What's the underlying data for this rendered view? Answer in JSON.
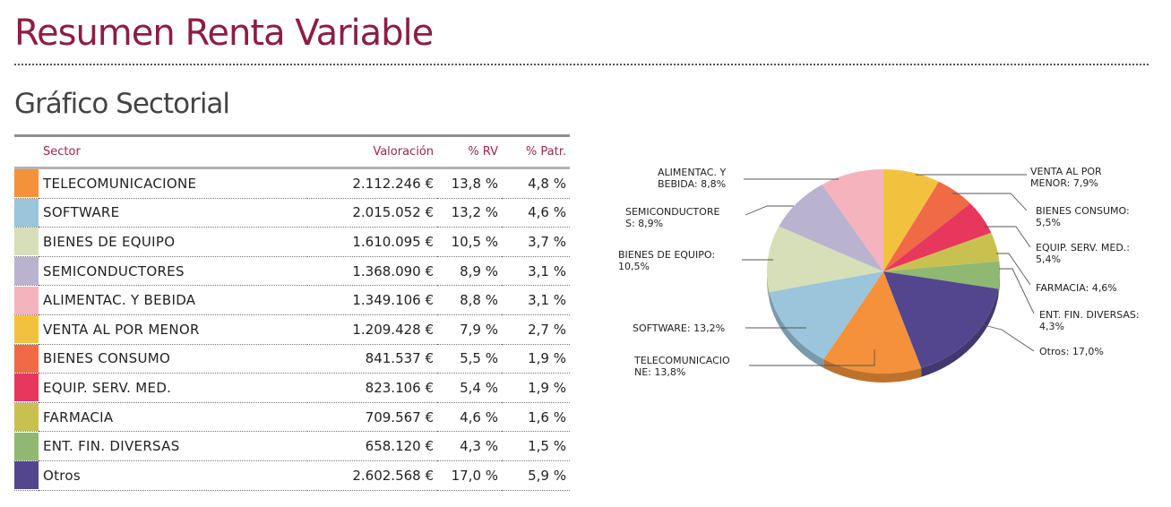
{
  "header": {
    "title": "Resumen Renta Variable",
    "subtitle": "Gráfico Sectorial"
  },
  "table": {
    "columns": [
      "Sector",
      "Valoración",
      "% RV",
      "% Patr."
    ],
    "rows": [
      {
        "sector": "TELECOMUNICACIONE",
        "valoracion": "2.112.246 €",
        "rv": "13,8 %",
        "patr": "4,8 %",
        "color": "#f4913a"
      },
      {
        "sector": "SOFTWARE",
        "valoracion": "2.015.052 €",
        "rv": "13,2 %",
        "patr": "4,6 %",
        "color": "#9ac5db"
      },
      {
        "sector": "BIENES DE EQUIPO",
        "valoracion": "1.610.095 €",
        "rv": "10,5 %",
        "patr": "3,7 %",
        "color": "#d6dfb8"
      },
      {
        "sector": "SEMICONDUCTORES",
        "valoracion": "1.368.090 €",
        "rv": "8,9 %",
        "patr": "3,1 %",
        "color": "#b9b3cf"
      },
      {
        "sector": "ALIMENTAC. Y BEBIDA",
        "valoracion": "1.349.106 €",
        "rv": "8,8 %",
        "patr": "3,1 %",
        "color": "#f5b3bd"
      },
      {
        "sector": "VENTA AL POR MENOR",
        "valoracion": "1.209.428 €",
        "rv": "7,9 %",
        "patr": "2,7 %",
        "color": "#f2c23e"
      },
      {
        "sector": "BIENES CONSUMO",
        "valoracion": "841.537 €",
        "rv": "5,5 %",
        "patr": "1,9 %",
        "color": "#ef6a45"
      },
      {
        "sector": "EQUIP. SERV. MED.",
        "valoracion": "823.106 €",
        "rv": "5,4 %",
        "patr": "1,9 %",
        "color": "#e8375c"
      },
      {
        "sector": "FARMACIA",
        "valoracion": "709.567 €",
        "rv": "4,6 %",
        "patr": "1,6 %",
        "color": "#c8c150"
      },
      {
        "sector": "ENT. FIN. DIVERSAS",
        "valoracion": "658.120 €",
        "rv": "4,3 %",
        "patr": "1,5 %",
        "color": "#8fb873"
      },
      {
        "sector": "Otros",
        "valoracion": "2.602.568 €",
        "rv": "17,0 %",
        "patr": "5,9 %",
        "color": "#54468e"
      }
    ]
  },
  "chart_data": {
    "type": "pie",
    "title": "",
    "order": "clockwise from top",
    "slices": [
      {
        "label_lines": [
          "VENTA AL POR",
          "MENOR: 7,9%"
        ],
        "value": 7.9,
        "color": "#f2c23e"
      },
      {
        "label_lines": [
          "BIENES CONSUMO:",
          "5,5%"
        ],
        "value": 5.5,
        "color": "#ef6a45"
      },
      {
        "label_lines": [
          "EQUIP. SERV. MED.:",
          "5,4%"
        ],
        "value": 5.4,
        "color": "#e8375c"
      },
      {
        "label_lines": [
          "FARMACIA: 4,6%"
        ],
        "value": 4.6,
        "color": "#c8c150"
      },
      {
        "label_lines": [
          "ENT. FIN. DIVERSAS:",
          "4,3%"
        ],
        "value": 4.3,
        "color": "#8fb873"
      },
      {
        "label_lines": [
          "Otros: 17,0%"
        ],
        "value": 17.0,
        "color": "#54468e"
      },
      {
        "label_lines": [
          "TELECOMUNICACIO",
          "NE: 13,8%"
        ],
        "value": 13.8,
        "color": "#f4913a"
      },
      {
        "label_lines": [
          "SOFTWARE: 13,2%"
        ],
        "value": 13.2,
        "color": "#9ac5db"
      },
      {
        "label_lines": [
          "BIENES DE EQUIPO:",
          "10,5%"
        ],
        "value": 10.5,
        "color": "#d6dfb8"
      },
      {
        "label_lines": [
          "SEMICONDUCTORE",
          "S: 8,9%"
        ],
        "value": 8.9,
        "color": "#b9b3cf"
      },
      {
        "label_lines": [
          "ALIMENTAC. Y",
          "BEBIDA: 8,8%"
        ],
        "value": 8.8,
        "color": "#f5b3bd"
      }
    ]
  }
}
